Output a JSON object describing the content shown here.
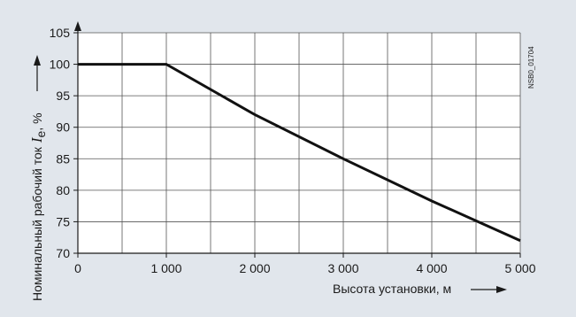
{
  "chart_data": {
    "type": "line",
    "xlabel": "Высота установки, м",
    "ylabel": {
      "prefix": "Номинальный рабочий ток",
      "symbol": "I",
      "subscript": "e",
      "suffix": ", %"
    },
    "ref_code": "NSB0_01704",
    "x_ticks": [
      0,
      1000,
      2000,
      3000,
      4000,
      5000
    ],
    "x_tick_labels": [
      "0",
      "1 000",
      "2 000",
      "3 000",
      "4 000",
      "5 000"
    ],
    "y_ticks": [
      70,
      75,
      80,
      85,
      90,
      95,
      100,
      105
    ],
    "y_tick_labels": [
      "70",
      "75",
      "80",
      "85",
      "90",
      "95",
      "100",
      "105"
    ],
    "xlim": [
      0,
      5000
    ],
    "ylim": [
      70,
      105
    ],
    "x_minor_step": 500,
    "grid": true,
    "legend": "none",
    "series": [
      {
        "x": [
          0,
          1000,
          2000,
          3000,
          4000,
          5000
        ],
        "values": [
          100,
          100,
          92,
          85,
          78.3,
          72
        ]
      }
    ],
    "colors": {
      "background": "#e1e6ec",
      "plot_area": "#ffffff",
      "grid": "#555555",
      "line": "#111111",
      "text": "#1a1a1a"
    }
  }
}
